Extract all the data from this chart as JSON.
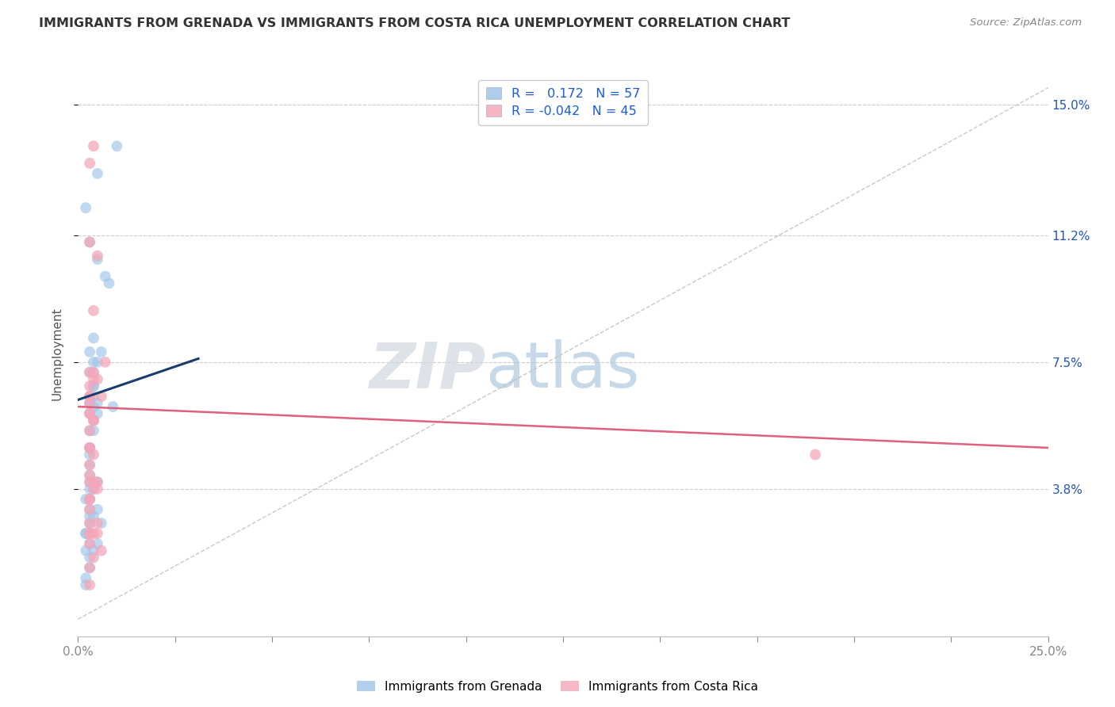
{
  "title": "IMMIGRANTS FROM GRENADA VS IMMIGRANTS FROM COSTA RICA UNEMPLOYMENT CORRELATION CHART",
  "source": "Source: ZipAtlas.com",
  "ylabel": "Unemployment",
  "ytick_vals": [
    0.038,
    0.075,
    0.112,
    0.15
  ],
  "ytick_labels": [
    "3.8%",
    "7.5%",
    "11.2%",
    "15.0%"
  ],
  "xtick_vals": [
    0.0,
    0.025,
    0.05,
    0.075,
    0.1,
    0.125,
    0.15,
    0.175,
    0.2,
    0.225,
    0.25
  ],
  "xtick_labels": [
    "0.0%",
    "",
    "",
    "",
    "",
    "",
    "",
    "",
    "",
    "",
    "25.0%"
  ],
  "xlim": [
    0.0,
    0.25
  ],
  "ylim": [
    -0.005,
    0.16
  ],
  "legend_line1": "R =   0.172   N = 57",
  "legend_line2": "R = -0.042   N = 45",
  "color_grenada": "#9fc5e8",
  "color_costarica": "#f4a7b9",
  "color_trend_grenada": "#1a3c6e",
  "color_trend_costarica": "#e06080",
  "color_diagonal": "#bbbbbb",
  "watermark_zip": "ZIP",
  "watermark_atlas": "atlas",
  "watermark_color_zip": "#d0d8e0",
  "watermark_color_atlas": "#b0c8e0",
  "grenada_x": [
    0.01,
    0.005,
    0.008,
    0.002,
    0.003,
    0.005,
    0.007,
    0.004,
    0.003,
    0.004,
    0.003,
    0.004,
    0.003,
    0.004,
    0.005,
    0.003,
    0.003,
    0.004,
    0.004,
    0.003,
    0.003,
    0.004,
    0.005,
    0.006,
    0.003,
    0.003,
    0.004,
    0.005,
    0.003,
    0.003,
    0.004,
    0.003,
    0.003,
    0.004,
    0.005,
    0.002,
    0.003,
    0.003,
    0.004,
    0.003,
    0.002,
    0.003,
    0.005,
    0.006,
    0.002,
    0.003,
    0.002,
    0.003,
    0.004,
    0.005,
    0.003,
    0.002,
    0.003,
    0.009,
    0.003,
    0.002,
    0.004
  ],
  "grenada_y": [
    0.138,
    0.13,
    0.098,
    0.12,
    0.11,
    0.105,
    0.1,
    0.082,
    0.078,
    0.075,
    0.072,
    0.068,
    0.065,
    0.072,
    0.075,
    0.063,
    0.06,
    0.058,
    0.062,
    0.055,
    0.05,
    0.065,
    0.063,
    0.078,
    0.045,
    0.05,
    0.055,
    0.06,
    0.063,
    0.042,
    0.068,
    0.04,
    0.038,
    0.04,
    0.04,
    0.035,
    0.032,
    0.035,
    0.038,
    0.028,
    0.025,
    0.03,
    0.032,
    0.028,
    0.025,
    0.022,
    0.02,
    0.018,
    0.02,
    0.022,
    0.015,
    0.012,
    0.025,
    0.062,
    0.048,
    0.01,
    0.03
  ],
  "costarica_x": [
    0.004,
    0.003,
    0.003,
    0.005,
    0.007,
    0.003,
    0.003,
    0.003,
    0.004,
    0.003,
    0.003,
    0.004,
    0.006,
    0.005,
    0.003,
    0.003,
    0.004,
    0.004,
    0.003,
    0.003,
    0.004,
    0.005,
    0.003,
    0.003,
    0.003,
    0.004,
    0.004,
    0.005,
    0.003,
    0.003,
    0.003,
    0.005,
    0.004,
    0.003,
    0.003,
    0.006,
    0.004,
    0.003,
    0.003,
    0.004,
    0.003,
    0.003,
    0.003,
    0.19,
    0.005
  ],
  "costarica_y": [
    0.138,
    0.133,
    0.11,
    0.106,
    0.075,
    0.072,
    0.068,
    0.065,
    0.07,
    0.063,
    0.06,
    0.072,
    0.065,
    0.07,
    0.06,
    0.055,
    0.058,
    0.058,
    0.05,
    0.05,
    0.048,
    0.04,
    0.045,
    0.042,
    0.04,
    0.038,
    0.04,
    0.038,
    0.035,
    0.032,
    0.028,
    0.028,
    0.025,
    0.025,
    0.022,
    0.02,
    0.018,
    0.015,
    0.01,
    0.09,
    0.065,
    0.035,
    0.025,
    0.048,
    0.025
  ],
  "grenada_trend_x": [
    0.0,
    0.031
  ],
  "grenada_trend_y": [
    0.064,
    0.076
  ],
  "costarica_trend_x": [
    0.0,
    0.25
  ],
  "costarica_trend_y": [
    0.062,
    0.05
  ]
}
